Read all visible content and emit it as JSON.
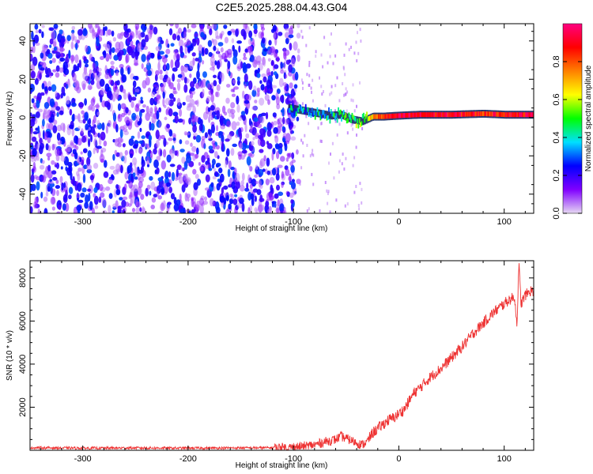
{
  "title": "C2E5.2025.288.04.43.G04",
  "chart_data": [
    {
      "type": "heatmap",
      "title": "C2E5.2025.288.04.43.G04",
      "xlabel": "Height of straight line (km)",
      "ylabel": "Frequency (Hz)",
      "xlim": [
        -350,
        128
      ],
      "ylim": [
        -50,
        49
      ],
      "xticks": [
        -300,
        -200,
        -100,
        0,
        100
      ],
      "yticks": [
        -40,
        -20,
        0,
        20,
        40
      ],
      "colorbar": {
        "label": "Normalized spectral amplitude",
        "range": [
          0.0,
          1.0
        ],
        "ticks": [
          "0.0",
          "0.2",
          "0.4",
          "0.6",
          "0.8"
        ],
        "stops": [
          "#e6d8f2",
          "#8000ff",
          "#0000ff",
          "#00e0ff",
          "#00ff00",
          "#ffff00",
          "#ff8000",
          "#ff0000",
          "#ff0080"
        ]
      },
      "noise_region_x": [
        -350,
        -95
      ],
      "signal_track": [
        {
          "x": -105,
          "freq": 5,
          "amp": 0.35
        },
        {
          "x": -95,
          "freq": 4,
          "amp": 0.35
        },
        {
          "x": -85,
          "freq": 3,
          "amp": 0.35
        },
        {
          "x": -75,
          "freq": 2,
          "amp": 0.4
        },
        {
          "x": -65,
          "freq": 1,
          "amp": 0.4
        },
        {
          "x": -55,
          "freq": 1.5,
          "amp": 0.45
        },
        {
          "x": -45,
          "freq": -1,
          "amp": 0.5
        },
        {
          "x": -35,
          "freq": -2,
          "amp": 0.55
        },
        {
          "x": -25,
          "freq": 0.5,
          "amp": 0.7
        },
        {
          "x": -15,
          "freq": 0.5,
          "amp": 0.85
        },
        {
          "x": 0,
          "freq": 1,
          "amp": 0.9
        },
        {
          "x": 20,
          "freq": 1.5,
          "amp": 0.9
        },
        {
          "x": 50,
          "freq": 1.5,
          "amp": 0.9
        },
        {
          "x": 80,
          "freq": 2,
          "amp": 0.85
        },
        {
          "x": 100,
          "freq": 1.5,
          "amp": 0.9
        },
        {
          "x": 128,
          "freq": 1.5,
          "amp": 0.9
        }
      ]
    },
    {
      "type": "line",
      "xlabel": "Height of straight line (km)",
      "ylabel": "SNR (10 * v/v)",
      "xlim": [
        -350,
        128
      ],
      "ylim": [
        0,
        8800
      ],
      "xticks": [
        -300,
        -200,
        -100,
        0,
        100
      ],
      "yticks": [
        2000,
        4000,
        6000,
        8000
      ],
      "color": "#ee3333",
      "series": [
        {
          "name": "SNR",
          "x": [
            -350,
            -300,
            -250,
            -200,
            -150,
            -120,
            -100,
            -90,
            -80,
            -70,
            -60,
            -55,
            -50,
            -45,
            -40,
            -35,
            -30,
            -25,
            -20,
            -15,
            -10,
            -5,
            0,
            5,
            10,
            15,
            20,
            30,
            40,
            50,
            60,
            70,
            80,
            90,
            100,
            105,
            110,
            112,
            114,
            116,
            120,
            125,
            128
          ],
          "y": [
            120,
            100,
            110,
            100,
            110,
            120,
            130,
            200,
            250,
            400,
            500,
            650,
            550,
            450,
            350,
            250,
            400,
            800,
            1000,
            1200,
            1400,
            1500,
            1700,
            1900,
            2300,
            2700,
            2900,
            3400,
            3800,
            4300,
            4800,
            5400,
            5900,
            6400,
            6800,
            7000,
            7100,
            5800,
            8600,
            6800,
            7200,
            7400,
            7400
          ]
        }
      ]
    }
  ]
}
